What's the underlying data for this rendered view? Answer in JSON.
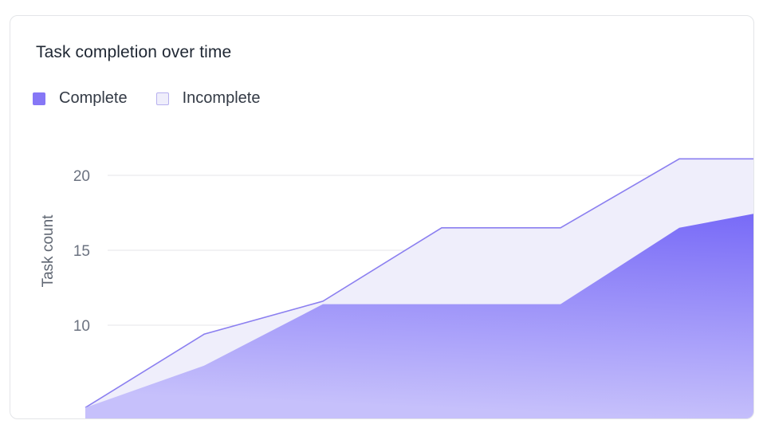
{
  "chart_data": {
    "type": "area",
    "title": "Task completion over time",
    "ylabel": "Task count",
    "xlabel": "",
    "stacked": false,
    "x": [
      0,
      1,
      2,
      3,
      4,
      5,
      6
    ],
    "ylim": [
      4.5,
      26.0
    ],
    "yticks": [
      10,
      15,
      20
    ],
    "grid": true,
    "legend_position": "top-left",
    "series": [
      {
        "name": "Complete",
        "values": [
          4.5,
          7.3,
          11.4,
          11.4,
          11.4,
          16.5,
          18.0
        ],
        "color": "#7b6cf6"
      },
      {
        "name": "Incomplete",
        "values": [
          4.5,
          9.4,
          11.6,
          16.5,
          16.5,
          21.1,
          21.1
        ],
        "color": "#efeefb"
      }
    ]
  }
}
